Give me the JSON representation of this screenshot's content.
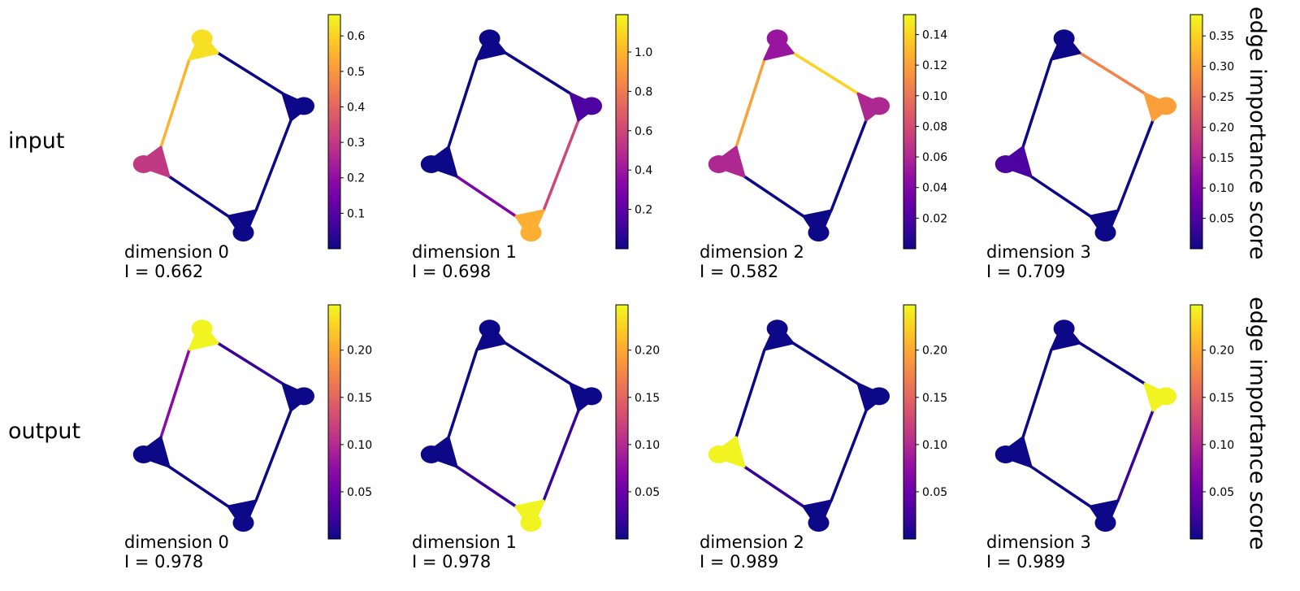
{
  "row_labels": {
    "input": "input",
    "output": "output"
  },
  "side_title": "edge importance score",
  "palette": [
    "#0d0887",
    "#41049d",
    "#6a00a8",
    "#8f0da4",
    "#b12a90",
    "#cc4778",
    "#e16462",
    "#f2844b",
    "#fca636",
    "#fcce25",
    "#f0f921"
  ],
  "rows": [
    {
      "key": "input",
      "panels": [
        {
          "dimension_label": "dimension 0",
          "i_label": "I =  0.662",
          "cbar_min": 0,
          "cbar_max": 0.66,
          "ticks": [
            "0.1",
            "0.2",
            "0.3",
            "0.4",
            "0.5",
            "0.6"
          ],
          "tick_values": [
            0.1,
            0.2,
            0.3,
            0.4,
            0.5,
            0.6
          ],
          "cluster_scores": [
            0.62,
            0.0,
            0.0,
            0.3
          ],
          "edge_scores": [
            0.0,
            0.0,
            0.0,
            0.55
          ]
        },
        {
          "dimension_label": "dimension 1",
          "i_label": "I =  0.698",
          "cbar_min": 0,
          "cbar_max": 1.19,
          "ticks": [
            "0.2",
            "0.4",
            "0.6",
            "0.8",
            "1.0"
          ],
          "tick_values": [
            0.2,
            0.4,
            0.6,
            0.8,
            1.0
          ],
          "cluster_scores": [
            0.0,
            0.15,
            0.98,
            0.0
          ],
          "edge_scores": [
            0.0,
            0.6,
            0.3,
            0.0
          ]
        },
        {
          "dimension_label": "dimension 2",
          "i_label": "I =  0.582",
          "cbar_min": 0,
          "cbar_max": 0.153,
          "ticks": [
            "0.02",
            "0.04",
            "0.06",
            "0.08",
            "0.10",
            "0.12",
            "0.14"
          ],
          "tick_values": [
            0.02,
            0.04,
            0.06,
            0.08,
            0.1,
            0.12,
            0.14
          ],
          "cluster_scores": [
            0.05,
            0.06,
            0.0,
            0.06
          ],
          "edge_scores": [
            0.14,
            0.0,
            0.0,
            0.12
          ]
        },
        {
          "dimension_label": "dimension 3",
          "i_label": "I =  0.709",
          "cbar_min": 0,
          "cbar_max": 0.385,
          "ticks": [
            "0.05",
            "0.10",
            "0.15",
            "0.20",
            "0.25",
            "0.30",
            "0.35"
          ],
          "tick_values": [
            0.05,
            0.1,
            0.15,
            0.2,
            0.25,
            0.3,
            0.35
          ],
          "cluster_scores": [
            0.0,
            0.3,
            0.0,
            0.05
          ],
          "edge_scores": [
            0.27,
            0.0,
            0.0,
            0.0
          ]
        }
      ]
    },
    {
      "key": "output",
      "panels": [
        {
          "dimension_label": "dimension 0",
          "i_label": "I =  0.978",
          "cbar_min": 0,
          "cbar_max": 0.248,
          "ticks": [
            "0.05",
            "0.10",
            "0.15",
            "0.20"
          ],
          "tick_values": [
            0.05,
            0.1,
            0.15,
            0.2
          ],
          "cluster_scores": [
            0.245,
            0.0,
            0.0,
            0.0
          ],
          "edge_scores": [
            0.02,
            0.0,
            0.0,
            0.07
          ]
        },
        {
          "dimension_label": "dimension 1",
          "i_label": "I =  0.978",
          "cbar_min": 0,
          "cbar_max": 0.248,
          "ticks": [
            "0.05",
            "0.10",
            "0.15",
            "0.20"
          ],
          "tick_values": [
            0.05,
            0.1,
            0.15,
            0.2
          ],
          "cluster_scores": [
            0.0,
            0.0,
            0.245,
            0.0
          ],
          "edge_scores": [
            0.0,
            0.02,
            0.02,
            0.0
          ]
        },
        {
          "dimension_label": "dimension 2",
          "i_label": "I =  0.989",
          "cbar_min": 0,
          "cbar_max": 0.248,
          "ticks": [
            "0.05",
            "0.10",
            "0.15",
            "0.20"
          ],
          "tick_values": [
            0.05,
            0.1,
            0.15,
            0.2
          ],
          "cluster_scores": [
            0.0,
            0.0,
            0.0,
            0.245
          ],
          "edge_scores": [
            0.0,
            0.0,
            0.02,
            0.0
          ]
        },
        {
          "dimension_label": "dimension 3",
          "i_label": "I =  0.989",
          "cbar_min": 0,
          "cbar_max": 0.248,
          "ticks": [
            "0.05",
            "0.10",
            "0.15",
            "0.20"
          ],
          "tick_values": [
            0.05,
            0.1,
            0.15,
            0.2
          ],
          "cluster_scores": [
            0.0,
            0.245,
            0.0,
            0.0
          ],
          "edge_scores": [
            0.0,
            0.02,
            0.0,
            0.0
          ]
        }
      ]
    }
  ]
}
